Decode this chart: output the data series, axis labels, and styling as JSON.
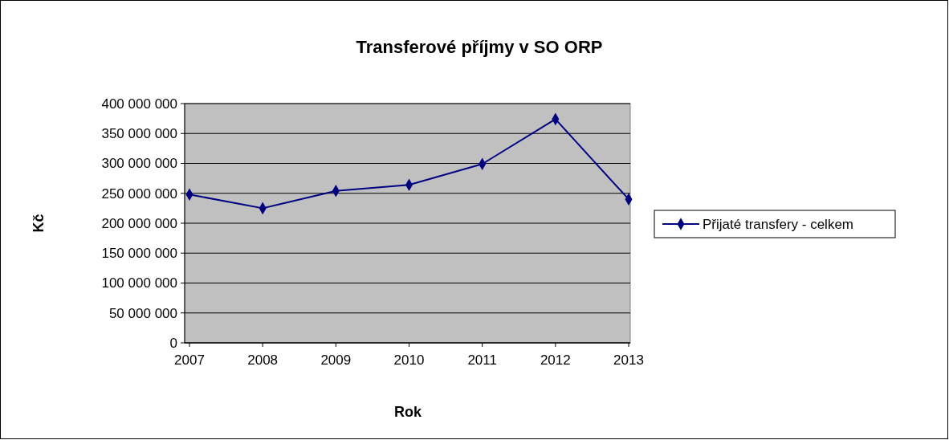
{
  "chart_data": {
    "type": "line",
    "title": "Transferové příjmy v SO ORP",
    "xlabel": "Rok",
    "ylabel": "Kč",
    "categories": [
      "2007",
      "2008",
      "2009",
      "2010",
      "2011",
      "2012",
      "2013"
    ],
    "series": [
      {
        "name": "Přijaté transfery - celkem",
        "color": "#000080",
        "values": [
          248000000,
          225000000,
          254000000,
          264000000,
          299000000,
          374000000,
          240000000
        ]
      }
    ],
    "ylim": [
      0,
      400000000
    ],
    "yticks": [
      0,
      {
        "value": 50000000,
        "label": "50 000 000"
      },
      {
        "value": 100000000,
        "label": "100 000 000"
      },
      {
        "value": 150000000,
        "label": "150 000 000"
      },
      {
        "value": 200000000,
        "label": "200 000 000"
      },
      {
        "value": 250000000,
        "label": "250 000 000"
      },
      {
        "value": 300000000,
        "label": "300 000 000"
      },
      {
        "value": 350000000,
        "label": "350 000 000"
      },
      {
        "value": 400000000,
        "label": "400 000 000"
      }
    ],
    "grid": "y",
    "legend": "right",
    "marker": "diamond",
    "line_style": "solid"
  }
}
